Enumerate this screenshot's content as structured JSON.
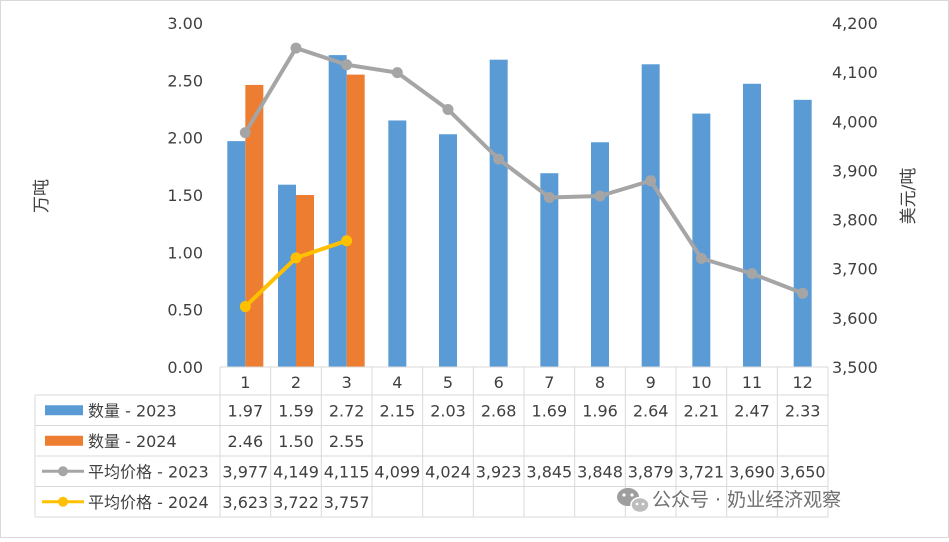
{
  "watermark": {
    "text": "公众号 · 奶业经济观察",
    "icon": "wechat-icon"
  },
  "colors": {
    "qty_2023": "#5B9BD5",
    "qty_2024": "#ED7D31",
    "price_2023": "#A5A5A5",
    "price_2024": "#FFC000",
    "grid": "#D9D9D9",
    "text": "#404040"
  },
  "chart_data": {
    "type": "bar",
    "title": "",
    "categories": [
      "1",
      "2",
      "3",
      "4",
      "5",
      "6",
      "7",
      "8",
      "9",
      "10",
      "11",
      "12"
    ],
    "y_left": {
      "label": "万吨",
      "min": 0,
      "max": 3,
      "ticks": [
        "0.00",
        "0.50",
        "1.00",
        "1.50",
        "2.00",
        "2.50",
        "3.00"
      ]
    },
    "y_right": {
      "label": "美元/吨",
      "min": 3500,
      "max": 4200,
      "ticks": [
        "3,500",
        "3,600",
        "3,700",
        "3,800",
        "3,900",
        "4,000",
        "4,100",
        "4,200"
      ]
    },
    "grid": false,
    "legend": "data-table",
    "series": [
      {
        "name": "数量 - 2023",
        "type": "bar",
        "axis": "left",
        "values": [
          1.97,
          1.59,
          2.72,
          2.15,
          2.03,
          2.68,
          1.69,
          1.96,
          2.64,
          2.21,
          2.47,
          2.33
        ],
        "labels": [
          "1.97",
          "1.59",
          "2.72",
          "2.15",
          "2.03",
          "2.68",
          "1.69",
          "1.96",
          "2.64",
          "2.21",
          "2.47",
          "2.33"
        ]
      },
      {
        "name": "数量 - 2024",
        "type": "bar",
        "axis": "left",
        "values": [
          2.46,
          1.5,
          2.55,
          null,
          null,
          null,
          null,
          null,
          null,
          null,
          null,
          null
        ],
        "labels": [
          "2.46",
          "1.50",
          "2.55",
          "",
          "",
          "",
          "",
          "",
          "",
          "",
          "",
          ""
        ]
      },
      {
        "name": "平均价格 - 2023",
        "type": "line",
        "axis": "right",
        "values": [
          3977,
          4149,
          4115,
          4099,
          4024,
          3923,
          3845,
          3848,
          3879,
          3721,
          3690,
          3650
        ],
        "labels": [
          "3,977",
          "4,149",
          "4,115",
          "4,099",
          "4,024",
          "3,923",
          "3,845",
          "3,848",
          "3,879",
          "3,721",
          "3,690",
          "3,650"
        ]
      },
      {
        "name": "平均价格 - 2024",
        "type": "line",
        "axis": "right",
        "values": [
          3623,
          3722,
          3757,
          null,
          null,
          null,
          null,
          null,
          null,
          null,
          null,
          null
        ],
        "labels": [
          "3,623",
          "3,722",
          "3,757",
          "",
          "",
          "",
          "",
          "",
          "",
          "",
          "",
          ""
        ]
      }
    ]
  }
}
